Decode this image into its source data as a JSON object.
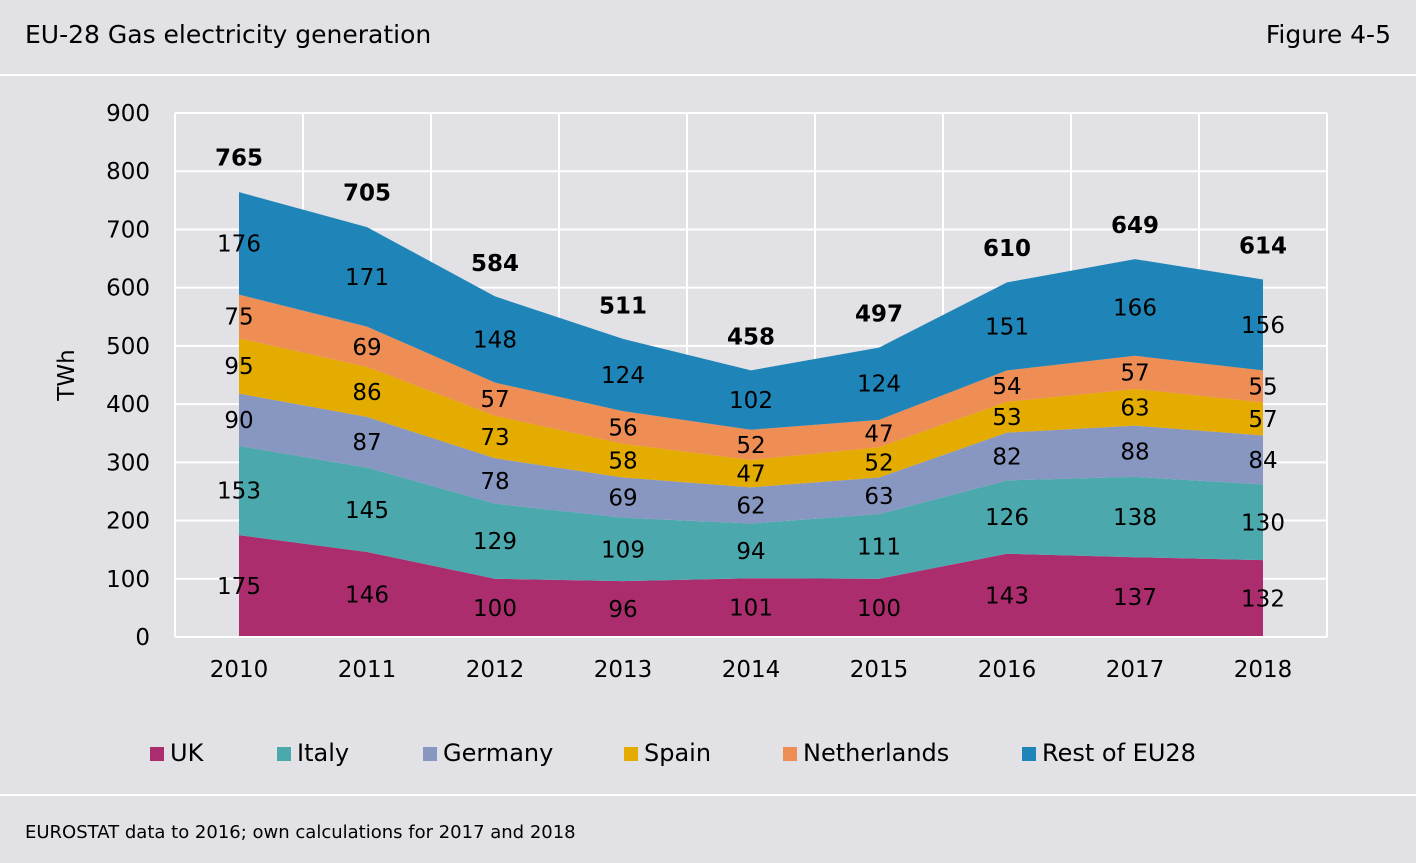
{
  "header": {
    "title": "EU-28 Gas electricity generation",
    "figure_label": "Figure 4-5"
  },
  "footer": {
    "source": "EUROSTAT data to 2016; own calculations for 2017 and 2018"
  },
  "chart_data": {
    "type": "area",
    "stacked": true,
    "ylabel": "TWh",
    "xlabel": "",
    "ylim": [
      0,
      900
    ],
    "yticks": [
      0,
      100,
      200,
      300,
      400,
      500,
      600,
      700,
      800,
      900
    ],
    "grid": true,
    "legend_position": "bottom",
    "categories": [
      "2010",
      "2011",
      "2012",
      "2013",
      "2014",
      "2015",
      "2016",
      "2017",
      "2018"
    ],
    "series": [
      {
        "name": "UK",
        "color": "#ac2d6e",
        "values": [
          175,
          146,
          100,
          96,
          101,
          100,
          143,
          137,
          132
        ]
      },
      {
        "name": "Italy",
        "color": "#4ba8ad",
        "values": [
          153,
          145,
          129,
          109,
          94,
          111,
          126,
          138,
          130
        ]
      },
      {
        "name": "Germany",
        "color": "#8897c1",
        "values": [
          90,
          87,
          78,
          69,
          62,
          63,
          82,
          88,
          84
        ]
      },
      {
        "name": "Spain",
        "color": "#e4ab00",
        "values": [
          95,
          86,
          73,
          58,
          47,
          52,
          53,
          63,
          57
        ]
      },
      {
        "name": "Netherlands",
        "color": "#ee8d54",
        "values": [
          75,
          69,
          57,
          56,
          52,
          47,
          54,
          57,
          55
        ]
      },
      {
        "name": "Rest of EU28",
        "color": "#1f84b7",
        "values": [
          176,
          171,
          148,
          124,
          102,
          124,
          151,
          166,
          156
        ]
      }
    ],
    "totals": [
      765,
      705,
      584,
      511,
      458,
      497,
      610,
      649,
      614
    ]
  }
}
